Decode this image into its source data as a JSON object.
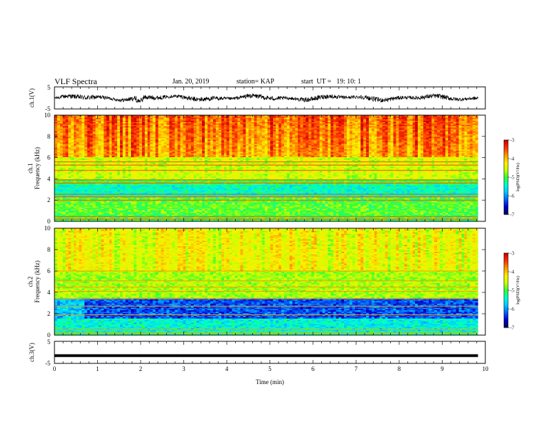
{
  "header": {
    "title": "VLF Spectra",
    "date": "Jan. 20, 2019",
    "station": "station= KAP",
    "start": "start  UT =   19: 10: 1"
  },
  "chart_data": [
    {
      "type": "line",
      "panel": "ch1-waveform",
      "ylabel": "ch.1(V)",
      "ylim": [
        -5,
        5
      ],
      "yticks": [
        "5",
        "-5"
      ],
      "xlim": [
        0,
        10
      ],
      "series_color": "#000000"
    },
    {
      "type": "heatmap",
      "panel": "ch1-spectrogram",
      "ylabel": "ch.1 Frequency (kHz)",
      "ylim": [
        0,
        10
      ],
      "yticks": [
        "0",
        "2",
        "4",
        "6",
        "8",
        "10"
      ],
      "xlim": [
        0,
        9.83
      ],
      "colorbar": {
        "label": "log(PSD)(V²/Hz)",
        "range": [
          -7,
          -3
        ],
        "ticks": [
          "-3",
          "-4",
          "-5",
          "-6",
          "-7"
        ]
      }
    },
    {
      "type": "heatmap",
      "panel": "ch2-spectrogram",
      "ylabel": "ch.2 Frequency (kHz)",
      "ylim": [
        0,
        10
      ],
      "yticks": [
        "0",
        "2",
        "4",
        "6",
        "8",
        "10"
      ],
      "xlim": [
        0,
        9.83
      ],
      "colorbar": {
        "label": "log(PSD)(V²/Hz)",
        "range": [
          -7,
          -3
        ],
        "ticks": [
          "-3",
          "-4",
          "-5",
          "-6",
          "-7"
        ]
      }
    },
    {
      "type": "line",
      "panel": "ch3-waveform",
      "ylabel": "ch.3(V)",
      "ylim": [
        -5,
        5
      ],
      "yticks": [
        "5",
        "-5"
      ],
      "xlim": [
        0,
        10
      ],
      "values_constant": -1.5,
      "xlabel": "Time  (min)",
      "xticks": [
        "0",
        "1",
        "2",
        "3",
        "4",
        "5",
        "6",
        "7",
        "8",
        "9",
        "10"
      ]
    }
  ],
  "colormap": [
    "#000066",
    "#0000cc",
    "#0066ff",
    "#00ccff",
    "#00ffcc",
    "#33ff33",
    "#ccff00",
    "#ffee00",
    "#ff9900",
    "#ff3300",
    "#cc0000"
  ]
}
